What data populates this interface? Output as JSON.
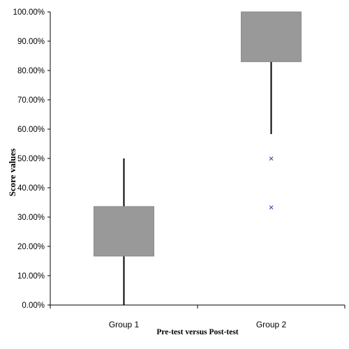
{
  "chart_data": {
    "type": "box",
    "categories": [
      "Group 1",
      "Group 2"
    ],
    "ylabel": "Score values",
    "xlabel": "Pre-test versus Post-test",
    "ylim": [
      0,
      100
    ],
    "yticks": [
      "0.00%",
      "10.00%",
      "20.00%",
      "30.00%",
      "40.00%",
      "50.00%",
      "60.00%",
      "70.00%",
      "80.00%",
      "90.00%",
      "100.00%"
    ],
    "box_color": "#999999",
    "outlier_color": "#333399",
    "outlier_marker": "x",
    "series": [
      {
        "category": "Group 1",
        "min": 0,
        "q1": 16.7,
        "q3": 33.6,
        "max": 50,
        "outliers": []
      },
      {
        "category": "Group 2",
        "min": 58.3,
        "q1": 83,
        "q3": 100,
        "max": 100,
        "outliers": [
          50,
          33.3
        ]
      }
    ]
  }
}
